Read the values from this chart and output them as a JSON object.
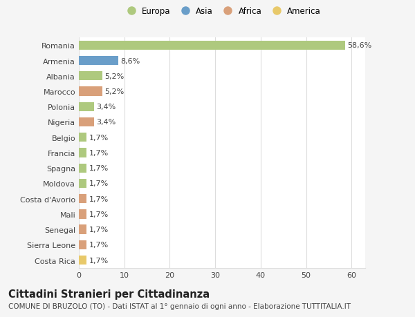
{
  "countries": [
    "Romania",
    "Armenia",
    "Albania",
    "Marocco",
    "Polonia",
    "Nigeria",
    "Belgio",
    "Francia",
    "Spagna",
    "Moldova",
    "Costa d'Avorio",
    "Mali",
    "Senegal",
    "Sierra Leone",
    "Costa Rica"
  ],
  "values": [
    58.6,
    8.6,
    5.2,
    5.2,
    3.4,
    3.4,
    1.7,
    1.7,
    1.7,
    1.7,
    1.7,
    1.7,
    1.7,
    1.7,
    1.7
  ],
  "labels": [
    "58,6%",
    "8,6%",
    "5,2%",
    "5,2%",
    "3,4%",
    "3,4%",
    "1,7%",
    "1,7%",
    "1,7%",
    "1,7%",
    "1,7%",
    "1,7%",
    "1,7%",
    "1,7%",
    "1,7%"
  ],
  "colors": [
    "#aec97e",
    "#6a9ec9",
    "#aec97e",
    "#d9a07a",
    "#aec97e",
    "#d9a07a",
    "#aec97e",
    "#aec97e",
    "#aec97e",
    "#aec97e",
    "#d9a07a",
    "#d9a07a",
    "#d9a07a",
    "#d9a07a",
    "#e8c96a"
  ],
  "legend_labels": [
    "Europa",
    "Asia",
    "Africa",
    "America"
  ],
  "legend_colors": [
    "#aec97e",
    "#6a9ec9",
    "#d9a07a",
    "#e8c96a"
  ],
  "title": "Cittadini Stranieri per Cittadinanza",
  "subtitle": "COMUNE DI BRUZOLO (TO) - Dati ISTAT al 1° gennaio di ogni anno - Elaborazione TUTTITALIA.IT",
  "xlim": [
    0,
    63
  ],
  "xticks": [
    0,
    10,
    20,
    30,
    40,
    50,
    60
  ],
  "background_color": "#f5f5f5",
  "bar_background": "#ffffff",
  "grid_color": "#dddddd",
  "text_color": "#444444",
  "label_fontsize": 8,
  "tick_fontsize": 8,
  "title_fontsize": 10.5,
  "subtitle_fontsize": 7.5
}
